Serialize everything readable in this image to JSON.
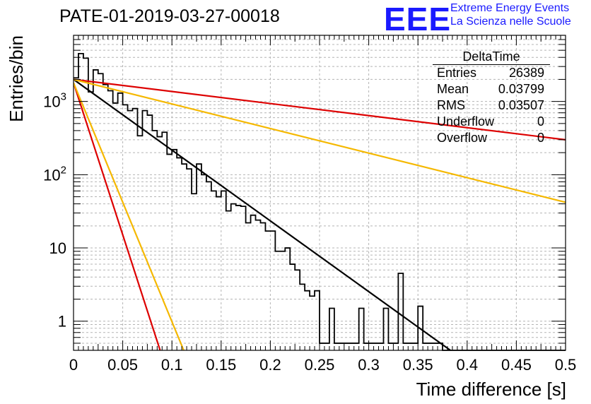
{
  "title": "PATE-01-2019-03-27-00018",
  "logo": {
    "mark": "EEE",
    "line1": "Extreme Energy Events",
    "line2": "La Scienza nelle Scuole",
    "color": "#1a1aff"
  },
  "stats": {
    "title": "DeltaTime",
    "rows": [
      {
        "label": "Entries",
        "value": "26389"
      },
      {
        "label": "Mean",
        "value": "0.03799"
      },
      {
        "label": "RMS",
        "value": "0.03507"
      },
      {
        "label": "Underflow",
        "value": "0"
      },
      {
        "label": "Overflow",
        "value": "0"
      }
    ]
  },
  "chart_data": {
    "type": "line",
    "title": "PATE-01-2019-03-27-00018",
    "xlabel": "Time difference [s]",
    "ylabel": "Entries/bin",
    "xlim": [
      0,
      0.5
    ],
    "ylim": [
      0.4,
      8000
    ],
    "yscale": "log",
    "grid": true,
    "x_ticks": [
      "0",
      "0.05",
      "0.1",
      "0.15",
      "0.2",
      "0.25",
      "0.3",
      "0.35",
      "0.4",
      "0.45",
      "0.5"
    ],
    "y_ticks": [
      {
        "value": 1,
        "label": "1"
      },
      {
        "value": 10,
        "label": "10"
      },
      {
        "value": 100,
        "label": "10^2"
      },
      {
        "value": 1000,
        "label": "10^3"
      }
    ],
    "histogram": {
      "bin_width": 0.005,
      "color": "#000000",
      "counts": [
        2100,
        4500,
        3900,
        1350,
        2700,
        2400,
        1700,
        1400,
        950,
        1300,
        900,
        750,
        800,
        340,
        750,
        650,
        400,
        330,
        380,
        190,
        220,
        170,
        140,
        120,
        55,
        140,
        100,
        80,
        60,
        50,
        60,
        32,
        40,
        38,
        37,
        22,
        28,
        24,
        22,
        17,
        17,
        9,
        9,
        10,
        6,
        5,
        3.2,
        2.6,
        2.2,
        2.6,
        0.5,
        0.5,
        1.5,
        0.5,
        0.5,
        0.5,
        0.5,
        0.5,
        1.5,
        0.5,
        0.5,
        0.5,
        0.5,
        1.5,
        0.5,
        0.5,
        4.5,
        0.5,
        0.5,
        0.5,
        1.6,
        0.5,
        0.5,
        0.5,
        0.5,
        0,
        0,
        0,
        0,
        0,
        0,
        0,
        0,
        0,
        0,
        0,
        0,
        0,
        0,
        0,
        0,
        0,
        0,
        0,
        0,
        0,
        0,
        0,
        0,
        0
      ]
    },
    "series": [
      {
        "color": "#000000",
        "points": [
          [
            0,
            2000
          ],
          [
            0.383,
            0.4
          ]
        ]
      },
      {
        "color": "#dd0000",
        "points": [
          [
            0,
            2000
          ],
          [
            0.5,
            300
          ]
        ]
      },
      {
        "color": "#f5b800",
        "points": [
          [
            0,
            2000
          ],
          [
            0.5,
            42
          ]
        ]
      },
      {
        "color": "#dd0000",
        "points": [
          [
            0,
            1800
          ],
          [
            0.088,
            0.4
          ]
        ]
      },
      {
        "color": "#f5b800",
        "points": [
          [
            0,
            1800
          ],
          [
            0.112,
            0.4
          ]
        ]
      }
    ]
  }
}
